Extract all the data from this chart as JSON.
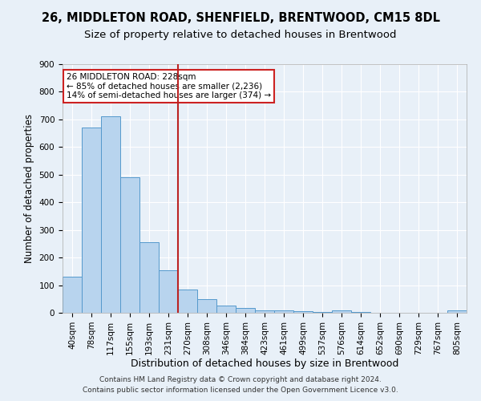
{
  "title1": "26, MIDDLETON ROAD, SHENFIELD, BRENTWOOD, CM15 8DL",
  "title2": "Size of property relative to detached houses in Brentwood",
  "xlabel": "Distribution of detached houses by size in Brentwood",
  "ylabel": "Number of detached properties",
  "bin_labels": [
    "40sqm",
    "78sqm",
    "117sqm",
    "155sqm",
    "193sqm",
    "231sqm",
    "270sqm",
    "308sqm",
    "346sqm",
    "384sqm",
    "423sqm",
    "461sqm",
    "499sqm",
    "537sqm",
    "576sqm",
    "614sqm",
    "652sqm",
    "690sqm",
    "729sqm",
    "767sqm",
    "805sqm"
  ],
  "bin_values": [
    130,
    670,
    710,
    490,
    255,
    155,
    85,
    50,
    25,
    18,
    10,
    8,
    5,
    3,
    8,
    2,
    1,
    1,
    1,
    0,
    8
  ],
  "bar_color": "#b8d4ee",
  "bar_edge_color": "#5599cc",
  "vline_color": "#bb2222",
  "vline_x": 5.5,
  "annotation_text": "26 MIDDLETON ROAD: 228sqm\n← 85% of detached houses are smaller (2,236)\n14% of semi-detached houses are larger (374) →",
  "annotation_box_facecolor": "#ffffff",
  "annotation_border_color": "#cc2222",
  "footer1": "Contains HM Land Registry data © Crown copyright and database right 2024.",
  "footer2": "Contains public sector information licensed under the Open Government Licence v3.0.",
  "ylim": [
    0,
    900
  ],
  "yticks": [
    0,
    100,
    200,
    300,
    400,
    500,
    600,
    700,
    800,
    900
  ],
  "background_color": "#e8f0f8",
  "grid_color": "#ffffff",
  "title1_fontsize": 10.5,
  "title2_fontsize": 9.5,
  "xlabel_fontsize": 9,
  "ylabel_fontsize": 8.5,
  "tick_fontsize": 7.5,
  "annotation_fontsize": 7.5,
  "footer_fontsize": 6.5
}
